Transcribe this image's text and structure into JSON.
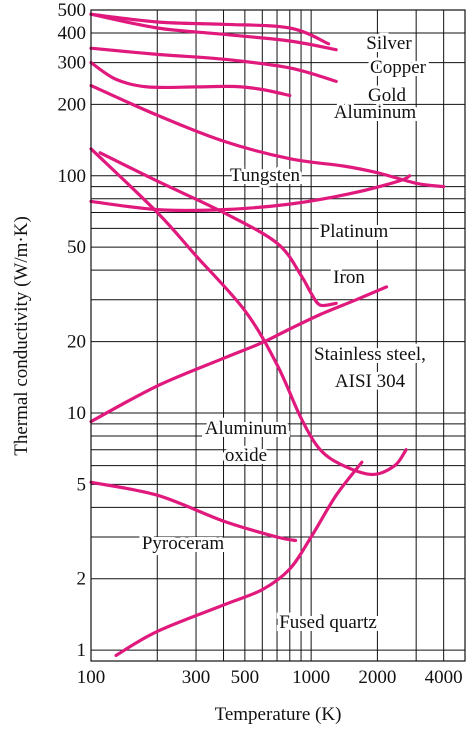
{
  "chart_data": {
    "type": "line",
    "title": "",
    "xlabel": "Temperature (K)",
    "ylabel": "Thermal conductivity (W/m·K)",
    "x_scale": "log",
    "y_scale": "log",
    "xlim": [
      100,
      5000
    ],
    "ylim": [
      0.9,
      500
    ],
    "grid": true,
    "line_color": "#E0197D",
    "x_ticks": [
      {
        "value": 100,
        "label": "100"
      },
      {
        "value": 300,
        "label": "300"
      },
      {
        "value": 500,
        "label": "500"
      },
      {
        "value": 1000,
        "label": "1000"
      },
      {
        "value": 2000,
        "label": "2000"
      },
      {
        "value": 4000,
        "label": "4000"
      }
    ],
    "y_ticks": [
      {
        "value": 1,
        "label": "1"
      },
      {
        "value": 2,
        "label": "2"
      },
      {
        "value": 5,
        "label": "5"
      },
      {
        "value": 10,
        "label": "10"
      },
      {
        "value": 20,
        "label": "20"
      },
      {
        "value": 50,
        "label": "50"
      },
      {
        "value": 100,
        "label": "100"
      },
      {
        "value": 200,
        "label": "200"
      },
      {
        "value": 300,
        "label": "300"
      },
      {
        "value": 400,
        "label": "400"
      },
      {
        "value": 500,
        "label": "500"
      }
    ],
    "series": [
      {
        "name": "Silver",
        "points": [
          [
            100,
            480
          ],
          [
            200,
            445
          ],
          [
            400,
            435
          ],
          [
            800,
            420
          ],
          [
            1200,
            360
          ]
        ]
      },
      {
        "name": "Copper",
        "points": [
          [
            100,
            480
          ],
          [
            200,
            420
          ],
          [
            400,
            395
          ],
          [
            800,
            370
          ],
          [
            1300,
            340
          ]
        ]
      },
      {
        "name": "Gold",
        "points": [
          [
            100,
            345
          ],
          [
            200,
            325
          ],
          [
            400,
            310
          ],
          [
            800,
            285
          ],
          [
            1300,
            250
          ]
        ]
      },
      {
        "name": "Aluminum",
        "points": [
          [
            100,
            300
          ],
          [
            130,
            255
          ],
          [
            180,
            237
          ],
          [
            300,
            237
          ],
          [
            450,
            238
          ],
          [
            600,
            231
          ],
          [
            800,
            218
          ]
        ]
      },
      {
        "name": "Tungsten",
        "points": [
          [
            100,
            240
          ],
          [
            200,
            180
          ],
          [
            400,
            140
          ],
          [
            800,
            118
          ],
          [
            1400,
            110
          ],
          [
            2000,
            103
          ],
          [
            3000,
            93
          ],
          [
            4000,
            90
          ]
        ]
      },
      {
        "name": "Platinum",
        "points": [
          [
            100,
            78
          ],
          [
            200,
            72
          ],
          [
            400,
            72
          ],
          [
            800,
            76
          ],
          [
            1500,
            84
          ],
          [
            2500,
            95
          ],
          [
            2800,
            100
          ]
        ]
      },
      {
        "name": "Iron",
        "points": [
          [
            110,
            125
          ],
          [
            200,
            95
          ],
          [
            400,
            70
          ],
          [
            700,
            52
          ],
          [
            900,
            38
          ],
          [
            1000,
            32
          ],
          [
            1100,
            28.5
          ],
          [
            1300,
            29
          ]
        ]
      },
      {
        "name": "Stainless steel, AISI 304",
        "points": [
          [
            100,
            9.2
          ],
          [
            200,
            13
          ],
          [
            400,
            17
          ],
          [
            600,
            19.8
          ],
          [
            800,
            22.6
          ],
          [
            1100,
            26
          ],
          [
            1600,
            30
          ],
          [
            2200,
            34
          ]
        ]
      },
      {
        "name": "Aluminum oxide",
        "points": [
          [
            100,
            130
          ],
          [
            200,
            70
          ],
          [
            300,
            46
          ],
          [
            500,
            27
          ],
          [
            700,
            16
          ],
          [
            900,
            9.5
          ],
          [
            1100,
            7
          ],
          [
            1400,
            6
          ],
          [
            1900,
            5.5
          ],
          [
            2400,
            6
          ],
          [
            2700,
            7
          ]
        ]
      },
      {
        "name": "Pyroceram",
        "points": [
          [
            100,
            5.1
          ],
          [
            200,
            4.5
          ],
          [
            400,
            3.5
          ],
          [
            700,
            3.0
          ],
          [
            850,
            2.9
          ]
        ]
      },
      {
        "name": "Fused quartz",
        "points": [
          [
            130,
            0.95
          ],
          [
            200,
            1.2
          ],
          [
            400,
            1.55
          ],
          [
            600,
            1.8
          ],
          [
            800,
            2.2
          ],
          [
            1000,
            3.0
          ],
          [
            1300,
            4.5
          ],
          [
            1700,
            6.2
          ]
        ]
      }
    ],
    "annotations": [
      {
        "text": "Silver",
        "series": "Silver"
      },
      {
        "text": "Copper",
        "series": "Copper"
      },
      {
        "text": "Gold",
        "series": "Gold"
      },
      {
        "text": "Aluminum",
        "series": "Aluminum"
      },
      {
        "text": "Tungsten",
        "series": "Tungsten"
      },
      {
        "text": "Platinum",
        "series": "Platinum"
      },
      {
        "text": "Iron",
        "series": "Iron"
      },
      {
        "text": "Stainless steel,",
        "series": "Stainless steel, AISI 304"
      },
      {
        "text": "AISI 304",
        "series": "Stainless steel, AISI 304"
      },
      {
        "text": "Aluminum",
        "series": "Aluminum oxide"
      },
      {
        "text": "oxide",
        "series": "Aluminum oxide"
      },
      {
        "text": "Pyroceram",
        "series": "Pyroceram"
      },
      {
        "text": "Fused quartz",
        "series": "Fused quartz"
      }
    ]
  }
}
